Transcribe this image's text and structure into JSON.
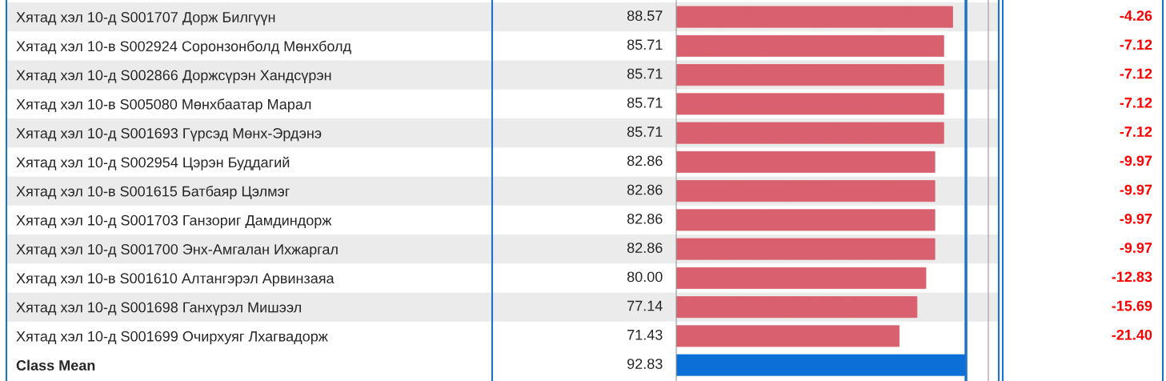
{
  "chart_data": {
    "type": "bar",
    "orientation": "horizontal",
    "categories": [
      "Хятад хэл 10-д S001707 Дорж Билгүүн",
      "Хятад хэл 10-в S002924 Соронзонболд Мөнхболд",
      "Хятад хэл 10-д S002866 Доржсүрэн Хандсүрэн",
      "Хятад хэл 10-в S005080 Мөнхбаатар Марал",
      "Хятад хэл 10-д S001693 Гүрсэд Мөнх-Эрдэнэ",
      "Хятад хэл 10-д S002954 Цэрэн Буддагий",
      "Хятад хэл 10-в S001615 Батбаяр Цэлмэг",
      "Хятад хэл 10-д S001703 Ганзориг Дамдиндорж",
      "Хятад хэл 10-д S001700 Энх-Амгалан Ихжаргал",
      "Хятад хэл 10-в S001610 Алтангэрэл Арвинзаяа",
      "Хятад хэл 10-д S001698 Ганхүрэл Мишээл",
      "Хятад хэл 10-д S001699 Очирхуяг Лхагвадорж",
      "Class Mean"
    ],
    "values": [
      88.57,
      85.71,
      85.71,
      85.71,
      85.71,
      82.86,
      82.86,
      82.86,
      82.86,
      80.0,
      77.14,
      71.43,
      92.83
    ],
    "value_labels": [
      "88.57",
      "85.71",
      "85.71",
      "85.71",
      "85.71",
      "82.86",
      "82.86",
      "82.86",
      "82.86",
      "80.00",
      "77.14",
      "71.43",
      "92.83"
    ],
    "colors": [
      "#d9606e",
      "#d9606e",
      "#d9606e",
      "#d9606e",
      "#d9606e",
      "#d9606e",
      "#d9606e",
      "#d9606e",
      "#d9606e",
      "#d9606e",
      "#d9606e",
      "#d9606e",
      "#0a6fd6"
    ],
    "xlim": [
      0,
      100
    ],
    "tick_labels": "y",
    "grid": false,
    "legend": false,
    "ref_lines": [
      {
        "axis": "x",
        "value": 92.83,
        "color": "#1a73c8"
      }
    ],
    "annotations": [
      "-4.26",
      "-7.12",
      "-7.12",
      "-7.12",
      "-7.12",
      "-9.97",
      "-9.97",
      "-9.97",
      "-9.97",
      "-12.83",
      "-15.69",
      "-21.40"
    ]
  }
}
